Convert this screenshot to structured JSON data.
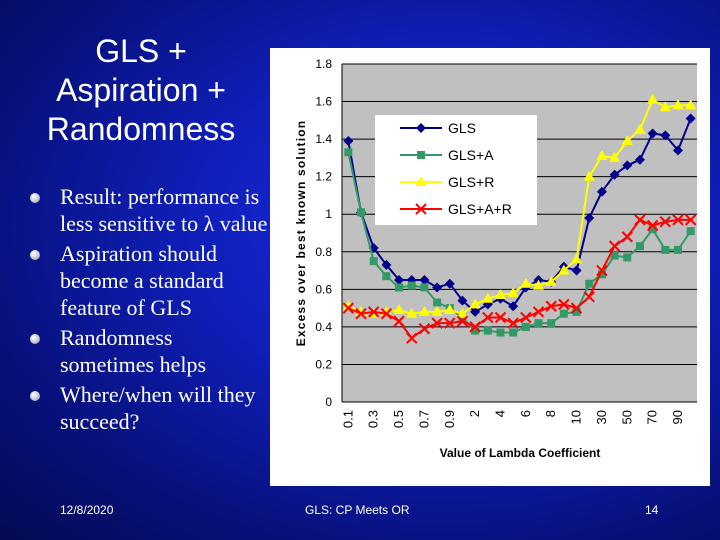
{
  "slide": {
    "title_lines": [
      "GLS +",
      "Aspiration +",
      "Randomness"
    ],
    "bullets": [
      "Result: performance is less sensitive to λ value",
      "Aspiration should become a standard feature of GLS",
      "Randomness sometimes helps",
      "Where/when will they succeed?"
    ],
    "footer_date": "12/8/2020",
    "footer_center": "GLS: CP Meets OR",
    "page_number": "14"
  },
  "chart_data": {
    "type": "line",
    "title": "",
    "xlabel": "Value of Lambda Coefficient",
    "ylabel": "Excess over best known solution",
    "ylim": [
      0,
      1.8
    ],
    "yticks": [
      "0",
      "0.2",
      "0.4",
      "0.6",
      "0.8",
      "1",
      "1.2",
      "1.4",
      "1.6",
      "1.8"
    ],
    "categories": [
      "0.1",
      "0.2",
      "0.3",
      "0.4",
      "0.5",
      "0.6",
      "0.7",
      "0.8",
      "0.9",
      "1",
      "2",
      "3",
      "4",
      "5",
      "6",
      "7",
      "8",
      "9",
      "10",
      "20",
      "30",
      "40",
      "50",
      "60",
      "70",
      "80",
      "90",
      "100"
    ],
    "xtick_labels": [
      "0.1",
      "0.3",
      "0.5",
      "0.7",
      "0.9",
      "2",
      "4",
      "6",
      "8",
      "10",
      "30",
      "50",
      "70",
      "90"
    ],
    "grid": true,
    "legend_position": "top-center",
    "series": [
      {
        "name": "GLS",
        "color": "#00008b",
        "marker": "diamond",
        "values": [
          1.39,
          1.01,
          0.82,
          0.73,
          0.65,
          0.65,
          0.65,
          0.61,
          0.63,
          0.54,
          0.48,
          0.52,
          0.55,
          0.51,
          0.61,
          0.65,
          0.64,
          0.72,
          0.7,
          0.98,
          1.12,
          1.21,
          1.26,
          1.29,
          1.43,
          1.42,
          1.34,
          1.51
        ]
      },
      {
        "name": "GLS+A",
        "color": "#339966",
        "marker": "square",
        "values": [
          1.33,
          1.01,
          0.75,
          0.67,
          0.61,
          0.62,
          0.61,
          0.53,
          0.5,
          0.45,
          0.38,
          0.38,
          0.37,
          0.37,
          0.4,
          0.42,
          0.42,
          0.47,
          0.48,
          0.63,
          0.68,
          0.78,
          0.77,
          0.83,
          0.92,
          0.81,
          0.81,
          0.91
        ]
      },
      {
        "name": "GLS+R",
        "color": "#ffff00",
        "marker": "triangle",
        "values": [
          0.51,
          0.48,
          0.47,
          0.48,
          0.49,
          0.47,
          0.48,
          0.48,
          0.49,
          0.47,
          0.52,
          0.55,
          0.57,
          0.58,
          0.63,
          0.62,
          0.64,
          0.7,
          0.76,
          1.2,
          1.31,
          1.3,
          1.39,
          1.45,
          1.61,
          1.57,
          1.58,
          1.58
        ]
      },
      {
        "name": "GLS+A+R",
        "color": "#ff0000",
        "marker": "x",
        "values": [
          0.5,
          0.47,
          0.48,
          0.47,
          0.43,
          0.34,
          0.39,
          0.42,
          0.42,
          0.43,
          0.4,
          0.45,
          0.45,
          0.42,
          0.45,
          0.48,
          0.51,
          0.52,
          0.5,
          0.56,
          0.7,
          0.83,
          0.88,
          0.97,
          0.94,
          0.96,
          0.97,
          0.97
        ]
      }
    ]
  }
}
